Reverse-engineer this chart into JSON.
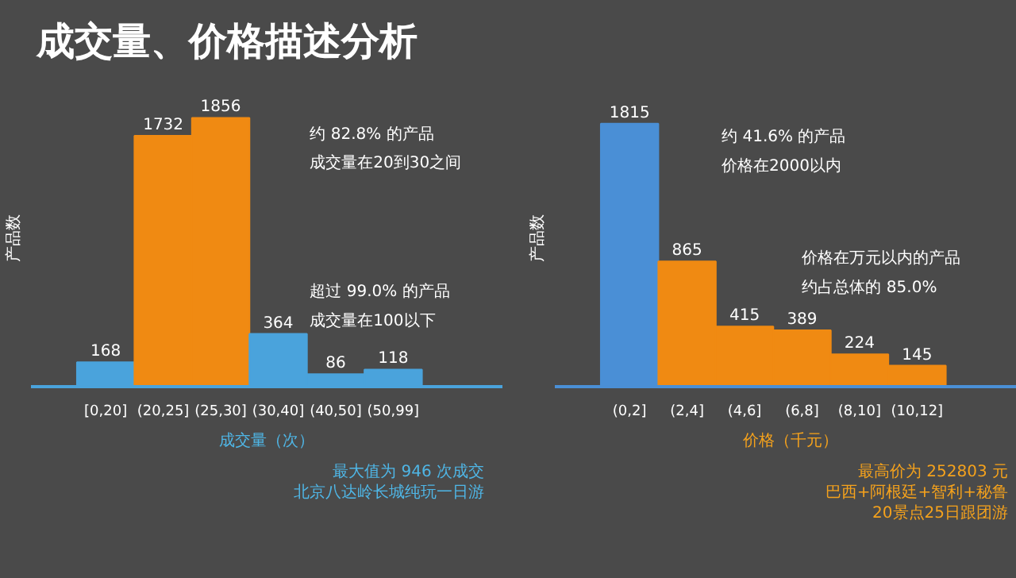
{
  "chart_data": [
    {
      "type": "bar",
      "title": "成交量、价格描述分析",
      "xlabel": "成交量（次）",
      "ylabel": "产品数",
      "categories": [
        "[0,20]",
        "(20,25]",
        "(25,30]",
        "(30,40]",
        "(40,50]",
        "(50,99]"
      ],
      "values": [
        168,
        1732,
        1856,
        364,
        86,
        118
      ],
      "colors": [
        "#4aa3dc",
        "#f08a12",
        "#f08a12",
        "#4aa3dc",
        "#4aa3dc",
        "#4aa3dc"
      ],
      "data_labels": true,
      "annotations": [
        "约 82.8% 的产品",
        "成交量在20到30之间",
        "超过 99.0% 的产品",
        "成交量在100以下",
        "最大值为 946 次成交",
        "北京八达岭长城纯玩一日游"
      ]
    },
    {
      "type": "bar",
      "xlabel": "价格（千元）",
      "ylabel": "产品数",
      "categories": [
        "(0,2]",
        "(2,4]",
        "(4,6]",
        "(6,8]",
        "(8,10]",
        "(10,12]"
      ],
      "values": [
        1815,
        865,
        415,
        389,
        224,
        145
      ],
      "colors": [
        "#4a8fd6",
        "#f08a12",
        "#f08a12",
        "#f08a12",
        "#f08a12",
        "#f08a12"
      ],
      "data_labels": true,
      "annotations": [
        "约 41.6% 的产品",
        "价格在2000以内",
        "价格在万元以内的产品",
        "约占总体的 85.0%",
        "最高价为 252803 元",
        "巴西+阿根廷+智利+秘鲁",
        "20景点25日跟团游"
      ]
    }
  ]
}
